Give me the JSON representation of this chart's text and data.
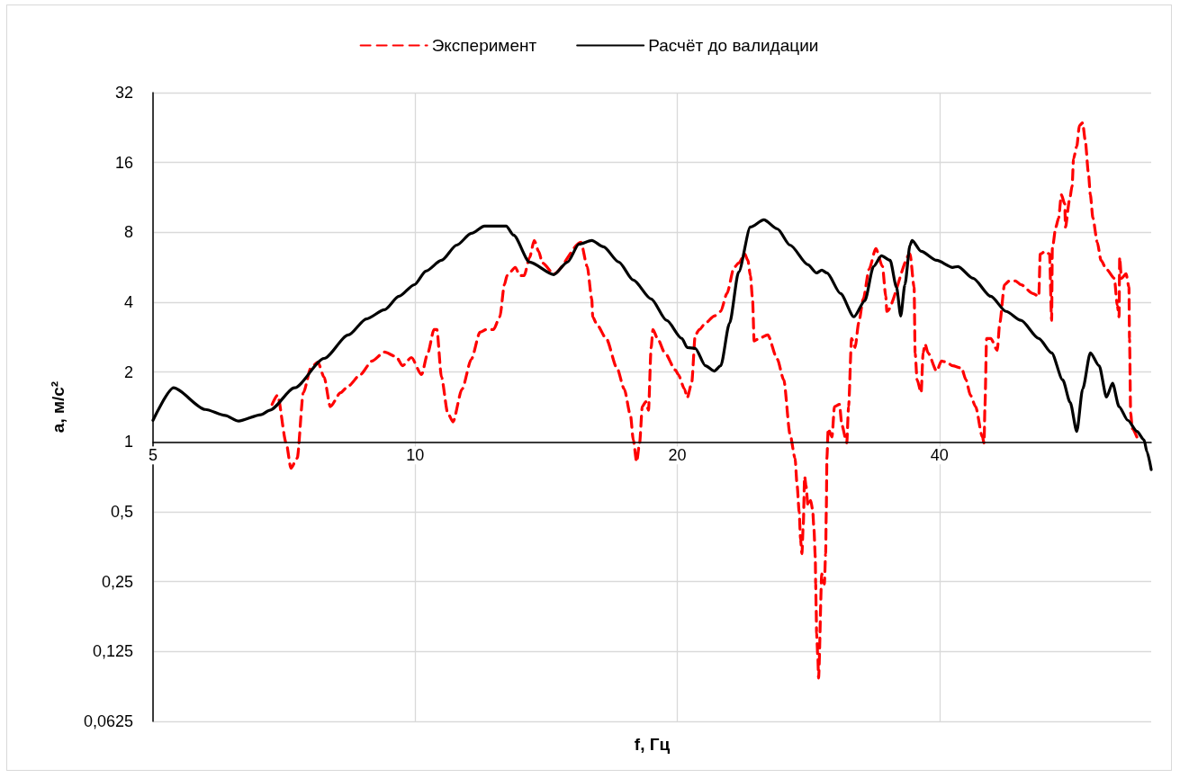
{
  "chart_data": {
    "type": "line",
    "xlabel": "f, Гц",
    "ylabel": "a, м/с²",
    "log": "xy",
    "xlim": [
      5,
      70
    ],
    "ylim": [
      0.0625,
      32
    ],
    "xticks": [
      5,
      10,
      20,
      40
    ],
    "yticks": [
      {
        "value": 0.0625,
        "label": "0,0625"
      },
      {
        "value": 0.125,
        "label": "0,125"
      },
      {
        "value": 0.25,
        "label": "0,25"
      },
      {
        "value": 0.5,
        "label": "0,5"
      },
      1,
      2,
      4,
      8,
      16,
      32
    ],
    "grid": true,
    "legend": "top",
    "marker": "none",
    "series": [
      {
        "name": "Эксперимент",
        "color": "#ff0000",
        "line_style": "dashed",
        "x": [
          6.85,
          6.95,
          7.11,
          7.2,
          7.32,
          7.44,
          7.59,
          7.73,
          7.86,
          7.99,
          8.21,
          8.38,
          8.65,
          8.92,
          9.22,
          9.51,
          9.67,
          9.9,
          10.17,
          10.34,
          10.51,
          10.59,
          10.72,
          10.9,
          11.05,
          11.32,
          11.6,
          11.87,
          12.07,
          12.3,
          12.51,
          12.66,
          12.75,
          13.03,
          13.19,
          13.34,
          13.53,
          13.7,
          13.86,
          14.0,
          14.43,
          15.5,
          15.76,
          15.95,
          15.99,
          16.18,
          16.57,
          17.05,
          17.38,
          17.67,
          17.8,
          17.96,
          18.1,
          18.23,
          18.4,
          18.53,
          18.66,
          18.75,
          18.98,
          19.35,
          19.9,
          20.05,
          20.38,
          20.53,
          20.77,
          20.97,
          21.2,
          21.54,
          22.05,
          22.43,
          22.8,
          23.24,
          23.52,
          23.9,
          24.1,
          24.26,
          24.4,
          24.5,
          24.8,
          25.4,
          26.05,
          26.5,
          26.94,
          27.3,
          27.45,
          27.6,
          27.7,
          27.8,
          27.9,
          28.0,
          28.1,
          28.25,
          28.45,
          28.6,
          28.7,
          28.8,
          28.83,
          28.87,
          28.9,
          29.0,
          29.05,
          29.3,
          29.5,
          29.6,
          29.65,
          29.7,
          29.8,
          30.1,
          30.3,
          30.7,
          30.9,
          31.3,
          31.45,
          31.7,
          32.0,
          32.3,
          32.7,
          33.2,
          33.8,
          34.4,
          34.7,
          34.8,
          37.0,
          37.4,
          37.5,
          37.7,
          38.1,
          38.3,
          38.5,
          38.8,
          39.7,
          40.2,
          40.7,
          41.4,
          42.4,
          42.9,
          43.4,
          44.0,
          44.8,
          45.0,
          45.1,
          45.3,
          45.8,
          46.6,
          46.9,
          47.5,
          48.1,
          48.9,
          49.6,
          51.2,
          52.0,
          52.2,
          52.9,
          53.5,
          53.8,
          53.9,
          54.4,
          54.8,
          55.2,
          55.7,
          55.8,
          56.4,
          56.8,
          57.0,
          57.5,
          57.9,
          58.4,
          58.8,
          59.3,
          59.6,
          60.0,
          60.7,
          61.3,
          62.2,
          63.5,
          64.0,
          64.3,
          64.4,
          64.7,
          65.5,
          66.0,
          66.1,
          66.3,
          66.6,
          67.4
        ],
        "values": [
          1.45,
          1.59,
          0.99,
          0.77,
          0.85,
          1.63,
          2.08,
          2.21,
          1.9,
          1.42,
          1.63,
          1.74,
          1.95,
          2.23,
          2.44,
          2.33,
          2.13,
          2.31,
          1.95,
          2.42,
          3.05,
          3.05,
          1.9,
          1.33,
          1.22,
          1.69,
          2.27,
          2.97,
          3.05,
          3.05,
          3.46,
          4.76,
          5.21,
          5.65,
          5.21,
          5.21,
          6.23,
          7.38,
          6.63,
          5.9,
          5.3,
          7.25,
          5.7,
          4.13,
          3.46,
          3.19,
          2.79,
          2.08,
          1.69,
          1.3,
          1.02,
          0.82,
          0.99,
          1.42,
          1.49,
          1.37,
          2.55,
          3.05,
          2.79,
          2.42,
          2.04,
          1.95,
          1.69,
          1.55,
          1.79,
          2.89,
          3.05,
          3.25,
          3.49,
          3.65,
          4.36,
          5.65,
          5.9,
          6.45,
          6.06,
          5.21,
          4.13,
          2.72,
          2.79,
          2.89,
          2.27,
          1.85,
          1.08,
          0.85,
          0.65,
          0.5,
          0.38,
          0.33,
          0.44,
          0.71,
          0.65,
          0.53,
          0.56,
          0.51,
          0.42,
          0.32,
          0.244,
          0.19,
          0.15,
          0.117,
          0.096,
          0.27,
          0.244,
          0.33,
          0.5,
          0.85,
          1.14,
          1.05,
          1.42,
          1.45,
          1.18,
          0.99,
          1.42,
          2.79,
          2.55,
          3.25,
          4.13,
          5.54,
          6.81,
          5.7,
          4.24,
          3.65,
          6.45,
          4.64,
          2.42,
          1.85,
          1.63,
          2.42,
          2.64,
          2.42,
          2.02,
          2.23,
          2.21,
          2.13,
          2.08,
          1.85,
          1.59,
          1.42,
          1.05,
          0.99,
          1.42,
          2.79,
          2.79,
          2.48,
          3.25,
          4.76,
          4.94,
          4.94,
          4.76,
          4.36,
          4.24,
          6.45,
          6.63,
          6.45,
          3.34,
          6.81,
          8.43,
          9.22,
          11.6,
          10.6,
          8.43,
          11.0,
          12.7,
          16.6,
          18.8,
          23.1,
          23.7,
          19.9,
          14.4,
          11.6,
          9.22,
          7.25,
          6.06,
          5.54,
          5.07,
          3.88,
          3.46,
          6.23,
          5.07,
          5.3,
          4.64,
          2.79,
          1.33,
          1.14,
          1.05
        ]
      },
      {
        "name": "Расчёт до валидации",
        "color": "#000000",
        "line_style": "solid",
        "x": [
          5,
          5.28,
          5.74,
          6.05,
          6.27,
          6.65,
          6.81,
          7.27,
          7.86,
          8.38,
          8.79,
          9.22,
          9.58,
          9.98,
          10.29,
          10.72,
          11.16,
          11.6,
          12.01,
          12.72,
          12.97,
          13.53,
          14.43,
          14.96,
          15.42,
          15.95,
          16.45,
          17.13,
          17.8,
          18.66,
          19.44,
          20.24,
          20.53,
          20.97,
          21.54,
          22.05,
          22.43,
          22.96,
          23.52,
          24.26,
          25.14,
          26.05,
          26.94,
          28.25,
          28.9,
          29.3,
          29.7,
          30.79,
          31.9,
          32.83,
          33.6,
          34.3,
          35.1,
          35.7,
          36.1,
          36.5,
          37.0,
          37.2,
          38.1,
          39.7,
          41.4,
          42.0,
          43.7,
          45.8,
          47.7,
          49.6,
          52.0,
          53.8,
          55.4,
          56.5,
          57.5,
          58.4,
          59.6,
          61.0,
          62.2,
          63.2,
          64.3,
          65.8,
          67.4,
          68.7,
          69.2,
          70.0
        ],
        "values": [
          1.24,
          1.71,
          1.38,
          1.3,
          1.23,
          1.31,
          1.37,
          1.71,
          2.29,
          2.89,
          3.39,
          3.71,
          4.24,
          4.76,
          5.45,
          6.06,
          7.05,
          7.92,
          8.51,
          8.51,
          7.78,
          5.96,
          5.26,
          5.96,
          7.12,
          7.38,
          6.93,
          5.96,
          4.98,
          4.13,
          3.34,
          2.79,
          2.55,
          2.53,
          2.13,
          2.02,
          2.13,
          3.25,
          5.4,
          8.43,
          9.06,
          8.28,
          7.05,
          5.8,
          5.35,
          5.5,
          5.35,
          4.36,
          3.46,
          4.06,
          5.7,
          6.34,
          6.06,
          4.64,
          3.49,
          4.76,
          7.05,
          7.38,
          6.63,
          6.06,
          5.65,
          5.7,
          5.07,
          4.24,
          3.65,
          3.34,
          2.79,
          2.42,
          1.85,
          1.48,
          1.11,
          1.69,
          2.42,
          2.13,
          1.56,
          1.79,
          1.42,
          1.24,
          1.11,
          1.02,
          0.91,
          0.76
        ]
      }
    ]
  }
}
